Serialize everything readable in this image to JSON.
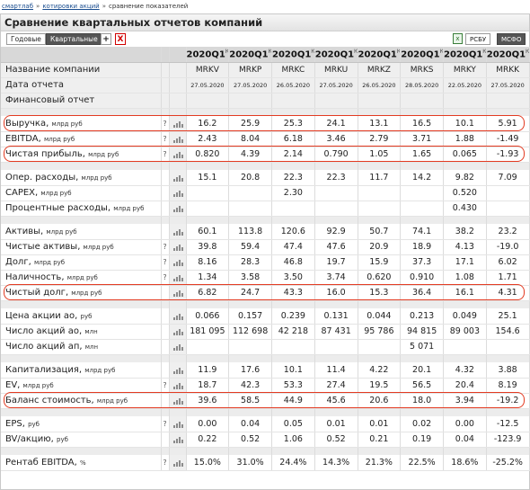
{
  "breadcrumb": [
    "смартлаб",
    "котировки акций",
    "сравнение показателей"
  ],
  "title": "Сравнение квартальных отчетов компаний",
  "tabs": [
    "Годовые",
    "Квартальные"
  ],
  "buttons": {
    "add": "+",
    "remove": "X"
  },
  "standards": [
    "РСБУ",
    "МСФО"
  ],
  "icons": {
    "excel": "excel-export-icon",
    "chart": "bar-chart-icon",
    "help": "help-icon"
  },
  "columns": [
    {
      "period": "2020Q1",
      "mark": "К",
      "ticker": "MRKV",
      "date": "27.05.2020"
    },
    {
      "period": "2020Q1",
      "mark": "К",
      "ticker": "MRKP",
      "date": "27.05.2020"
    },
    {
      "period": "2020Q1",
      "mark": "К",
      "ticker": "MRKC",
      "date": "26.05.2020"
    },
    {
      "period": "2020Q1",
      "mark": "К",
      "ticker": "MRKU",
      "date": "27.05.2020"
    },
    {
      "period": "2020Q1",
      "mark": "К",
      "ticker": "MRKZ",
      "date": "26.05.2020"
    },
    {
      "period": "2020Q1",
      "mark": "К",
      "ticker": "MRKS",
      "date": "28.05.2020"
    },
    {
      "period": "2020Q1",
      "mark": "К",
      "ticker": "MRKY",
      "date": "22.05.2020"
    },
    {
      "period": "2020Q1",
      "mark": "К",
      "ticker": "MRKK",
      "date": "27.05.2020"
    }
  ],
  "info_labels": {
    "company": "Название компании",
    "date": "Дата отчета",
    "report": "Финансовый отчет"
  },
  "rows": [
    {
      "name": "Выручка",
      "unit": "млрд руб",
      "help": true,
      "values": [
        "16.2",
        "25.9",
        "25.3",
        "24.1",
        "13.1",
        "16.5",
        "10.1",
        "5.91"
      ],
      "highlight": true
    },
    {
      "name": "EBITDA",
      "unit": "млрд руб",
      "help": true,
      "values": [
        "2.43",
        "8.04",
        "6.18",
        "3.46",
        "2.79",
        "3.71",
        "1.88",
        "-1.49"
      ]
    },
    {
      "name": "Чистая прибыль",
      "unit": "млрд руб",
      "help": true,
      "values": [
        "0.820",
        "4.39",
        "2.14",
        "0.790",
        "1.05",
        "1.65",
        "0.065",
        "-1.93"
      ],
      "highlight": true
    },
    {
      "spacer": true
    },
    {
      "name": "Опер. расходы",
      "unit": "млрд руб",
      "help": false,
      "values": [
        "15.1",
        "20.8",
        "22.3",
        "22.3",
        "11.7",
        "14.2",
        "9.82",
        "7.09"
      ]
    },
    {
      "name": "CAPEX",
      "unit": "млрд руб",
      "help": false,
      "values": [
        "",
        "",
        "2.30",
        "",
        "",
        "",
        "0.520",
        ""
      ]
    },
    {
      "name": "Процентные расходы",
      "unit": "млрд руб",
      "help": false,
      "values": [
        "",
        "",
        "",
        "",
        "",
        "",
        "0.430",
        ""
      ]
    },
    {
      "spacer": true
    },
    {
      "name": "Активы",
      "unit": "млрд руб",
      "help": false,
      "values": [
        "60.1",
        "113.8",
        "120.6",
        "92.9",
        "50.7",
        "74.1",
        "38.2",
        "23.2"
      ]
    },
    {
      "name": "Чистые активы",
      "unit": "млрд руб",
      "help": true,
      "values": [
        "39.8",
        "59.4",
        "47.4",
        "47.6",
        "20.9",
        "18.9",
        "4.13",
        "-19.0"
      ]
    },
    {
      "name": "Долг",
      "unit": "млрд руб",
      "help": true,
      "values": [
        "8.16",
        "28.3",
        "46.8",
        "19.7",
        "15.9",
        "37.3",
        "17.1",
        "6.02"
      ]
    },
    {
      "name": "Наличность",
      "unit": "млрд руб",
      "help": true,
      "values": [
        "1.34",
        "3.58",
        "3.50",
        "3.74",
        "0.620",
        "0.910",
        "1.08",
        "1.71"
      ]
    },
    {
      "name": "Чистый долг",
      "unit": "млрд руб",
      "help": false,
      "values": [
        "6.82",
        "24.7",
        "43.3",
        "16.0",
        "15.3",
        "36.4",
        "16.1",
        "4.31"
      ],
      "highlight": true
    },
    {
      "spacer": true
    },
    {
      "name": "Цена акции ао",
      "unit": "руб",
      "help": false,
      "values": [
        "0.066",
        "0.157",
        "0.239",
        "0.131",
        "0.044",
        "0.213",
        "0.049",
        "25.1"
      ]
    },
    {
      "name": "Число акций ао",
      "unit": "млн",
      "help": false,
      "values": [
        "181 095",
        "112 698",
        "42 218",
        "87 431",
        "95 786",
        "94 815",
        "89 003",
        "154.6"
      ]
    },
    {
      "name": "Число акций ап",
      "unit": "млн",
      "help": false,
      "values": [
        "",
        "",
        "",
        "",
        "",
        "5 071",
        "",
        ""
      ]
    },
    {
      "spacer": true
    },
    {
      "name": "Капитализация",
      "unit": "млрд руб",
      "help": false,
      "values": [
        "11.9",
        "17.6",
        "10.1",
        "11.4",
        "4.22",
        "20.1",
        "4.32",
        "3.88"
      ]
    },
    {
      "name": "EV",
      "unit": "млрд руб",
      "help": true,
      "values": [
        "18.7",
        "42.3",
        "53.3",
        "27.4",
        "19.5",
        "56.5",
        "20.4",
        "8.19"
      ]
    },
    {
      "name": "Баланс стоимость",
      "unit": "млрд руб",
      "help": false,
      "values": [
        "39.6",
        "58.5",
        "44.9",
        "45.6",
        "20.6",
        "18.0",
        "3.94",
        "-19.2"
      ],
      "highlight": true
    },
    {
      "spacer": true
    },
    {
      "name": "EPS",
      "unit": "руб",
      "help": true,
      "values": [
        "0.00",
        "0.04",
        "0.05",
        "0.01",
        "0.01",
        "0.02",
        "0.00",
        "-12.5"
      ]
    },
    {
      "name": "BV/акцию",
      "unit": "руб",
      "help": false,
      "values": [
        "0.22",
        "0.52",
        "1.06",
        "0.52",
        "0.21",
        "0.19",
        "0.04",
        "-123.9"
      ]
    },
    {
      "spacer": true
    },
    {
      "name": "Рентаб EBITDA",
      "unit": "%",
      "help": true,
      "values": [
        "15.0%",
        "31.0%",
        "24.4%",
        "14.3%",
        "21.3%",
        "22.5%",
        "18.6%",
        "-25.2%"
      ]
    }
  ]
}
